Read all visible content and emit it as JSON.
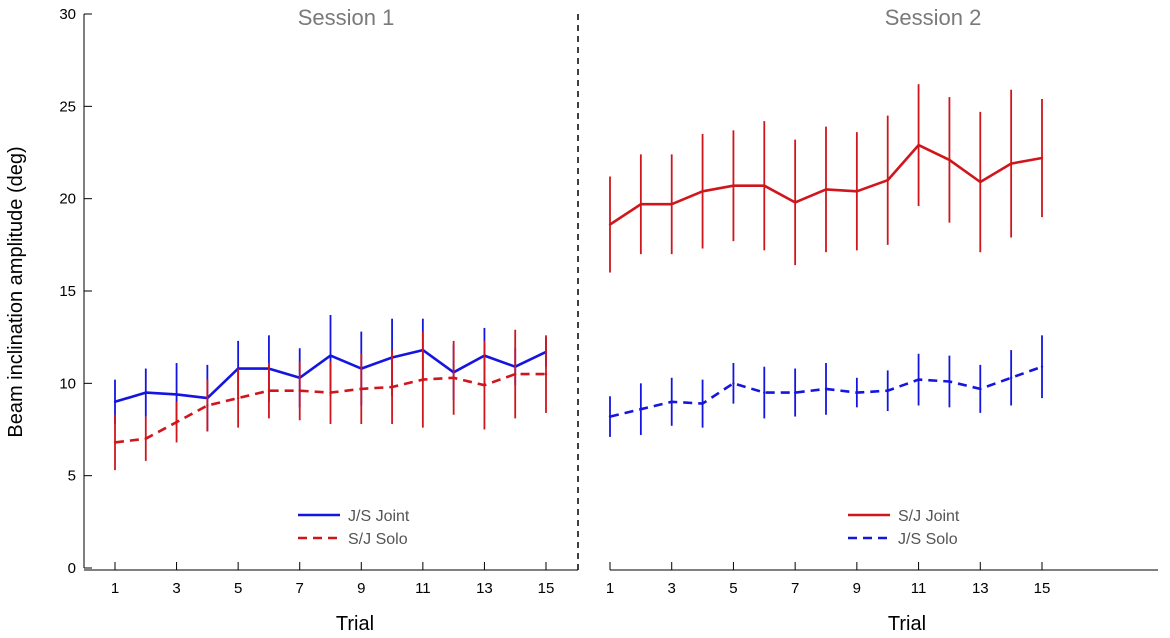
{
  "chart_data": {
    "type": "line",
    "ylabel": "Beam inclination amplitude (deg)",
    "xlabel": "Trial",
    "ylim": [
      0,
      30
    ],
    "yticks": [
      0,
      5,
      10,
      15,
      20,
      25,
      30
    ],
    "xticks": [
      1,
      3,
      5,
      7,
      9,
      11,
      13,
      15
    ],
    "colors": {
      "joint_red": "#d0161d",
      "solo_red": "#d0161d",
      "blue": "#1515e0"
    },
    "panels": [
      {
        "title": "Session 1",
        "x": [
          1,
          2,
          3,
          4,
          5,
          6,
          7,
          8,
          9,
          10,
          11,
          12,
          13,
          14,
          15
        ],
        "series": [
          {
            "name": "J/S Joint",
            "color": "#1515e0",
            "dash": "solid",
            "values": [
              9.0,
              9.5,
              9.4,
              9.2,
              10.8,
              10.8,
              10.3,
              11.5,
              10.8,
              11.4,
              11.8,
              10.6,
              11.5,
              10.9,
              11.7
            ],
            "err": [
              1.2,
              1.3,
              1.7,
              1.8,
              1.5,
              1.8,
              1.6,
              2.2,
              2.0,
              2.1,
              1.7,
              1.5,
              1.5,
              1.0,
              0.8
            ]
          },
          {
            "name": "S/J Solo",
            "color": "#d0161d",
            "dash": "dashed",
            "values": [
              6.8,
              7.0,
              7.9,
              8.8,
              9.2,
              9.6,
              9.6,
              9.5,
              9.7,
              9.8,
              10.2,
              10.3,
              9.9,
              10.5,
              10.5
            ],
            "err": [
              1.5,
              1.2,
              1.1,
              1.4,
              1.6,
              1.5,
              1.6,
              1.7,
              1.9,
              2.0,
              2.6,
              2.0,
              2.4,
              2.4,
              2.1
            ]
          }
        ]
      },
      {
        "title": "Session 2",
        "x": [
          1,
          2,
          3,
          4,
          5,
          6,
          7,
          8,
          9,
          10,
          11,
          12,
          13,
          14,
          15
        ],
        "series": [
          {
            "name": "S/J Joint",
            "color": "#d0161d",
            "dash": "solid",
            "values": [
              18.6,
              19.7,
              19.7,
              20.4,
              20.7,
              20.7,
              19.8,
              20.5,
              20.4,
              21.0,
              22.9,
              22.1,
              20.9,
              21.9,
              22.2
            ],
            "err": [
              2.6,
              2.7,
              2.7,
              3.1,
              3.0,
              3.5,
              3.4,
              3.4,
              3.2,
              3.5,
              3.3,
              3.4,
              3.8,
              4.0,
              3.2
            ]
          },
          {
            "name": "J/S Solo",
            "color": "#1515e0",
            "dash": "dashed",
            "values": [
              8.2,
              8.6,
              9.0,
              8.9,
              10.0,
              9.5,
              9.5,
              9.7,
              9.5,
              9.6,
              10.2,
              10.1,
              9.7,
              10.3,
              10.9
            ],
            "err": [
              1.1,
              1.4,
              1.3,
              1.3,
              1.1,
              1.4,
              1.3,
              1.4,
              0.8,
              1.1,
              1.4,
              1.4,
              1.3,
              1.5,
              1.7
            ]
          }
        ]
      }
    ]
  }
}
